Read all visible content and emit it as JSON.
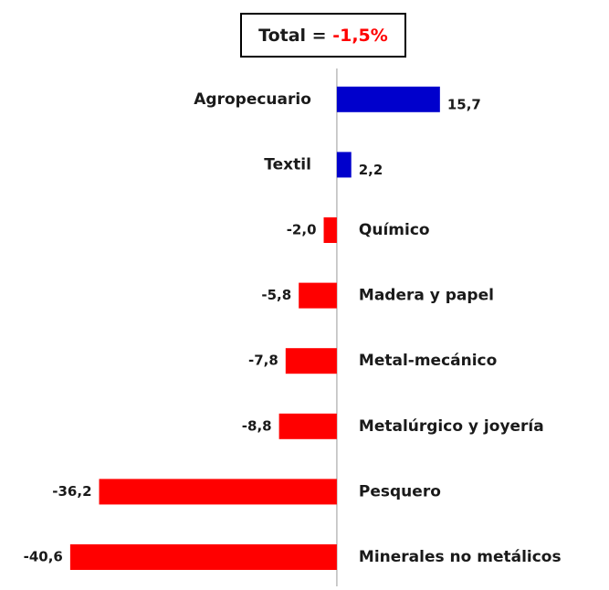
{
  "chart_data": {
    "type": "hbar",
    "title": "Total =",
    "annotation": "-1,5%",
    "annotation_color": "#ff0000",
    "categories": [
      "Agropecuario",
      "Textil",
      "Químico",
      "Madera y papel",
      "Metal-mecánico",
      "Metalúrgico y joyería",
      "Pesquero",
      "Minerales no metálicos"
    ],
    "values": [
      15.7,
      2.2,
      -2.0,
      -5.8,
      -7.8,
      -8.8,
      -36.2,
      -40.6
    ],
    "value_labels": [
      "15,7",
      "2,2",
      "-2,0",
      "-5,8",
      "-7,8",
      "-8,8",
      "-36,2",
      "-40,6"
    ],
    "colors": [
      "#0000cc",
      "#0000cc",
      "#ff0000",
      "#ff0000",
      "#ff0000",
      "#ff0000",
      "#ff0000",
      "#ff0000"
    ],
    "xlim": [
      -41,
      16
    ]
  }
}
